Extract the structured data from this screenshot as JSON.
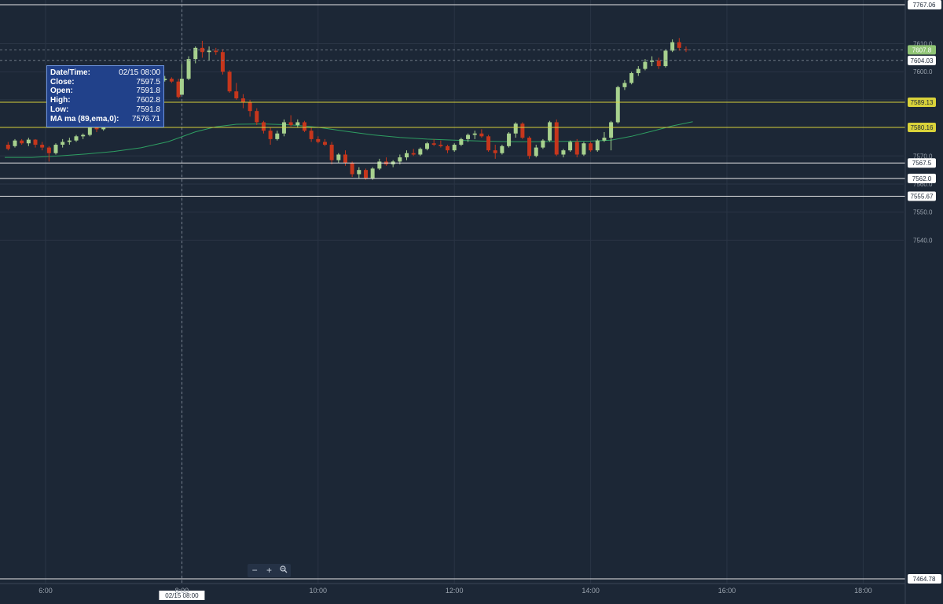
{
  "colors": {
    "background": "#1c2736",
    "grid": "#2a3545",
    "up": "#a7d18e",
    "down": "#c6361c",
    "ma": "#2e9e62",
    "yellow_line": "#d9d23a",
    "white_line": "#e6e6e6",
    "crosshair": "#8a93a0",
    "axis_text": "#9aa3ae"
  },
  "tooltip": {
    "rows": [
      {
        "label": "Date/Time:",
        "value": "02/15 08:00"
      },
      {
        "label": "Close:",
        "value": "7597.5"
      },
      {
        "label": "Open:",
        "value": "7591.8"
      },
      {
        "label": "High:",
        "value": "7602.8"
      },
      {
        "label": "Low:",
        "value": "7591.8"
      },
      {
        "label": "MA ma (89,ema,0):",
        "value": "7576.71"
      }
    ]
  },
  "zoom_controls": {
    "minus": "−",
    "plus": "+",
    "zoom_icon": "magnifier-icon"
  },
  "crosshair_label": "02/15 08:00",
  "chart_data": {
    "type": "candlestick",
    "y_axis_ticks": [
      7610.0,
      7600.0,
      7590.0,
      7570.0,
      7560.0,
      7550.0,
      7540.0
    ],
    "y_axis_tick_labels": [
      "7610.0",
      "7600.0",
      "7590.0",
      "7570.0",
      "7560.0",
      "7550.0",
      "7540.0"
    ],
    "x_axis_ticks": [
      "6:00",
      "8:00",
      "10:00",
      "12:00",
      "14:00",
      "16:00",
      "18:00"
    ],
    "x_axis_tick_hours": [
      6,
      8,
      10,
      12,
      14,
      16,
      18
    ],
    "axis_edge_labels": [
      {
        "value": 7767.06,
        "label": "7767.06"
      },
      {
        "value": 7464.78,
        "label": "7464.78"
      }
    ],
    "horizontal_lines": [
      {
        "value": 7589.13,
        "label": "7589.13",
        "style": "yellow"
      },
      {
        "value": 7580.16,
        "label": "7580.16",
        "style": "yellow"
      },
      {
        "value": 7567.5,
        "label": "7567.5",
        "style": "white"
      },
      {
        "value": 7562.0,
        "label": "7562.0",
        "style": "white"
      },
      {
        "value": 7555.67,
        "label": "7555.67",
        "style": "white"
      }
    ],
    "dashed_lines": [
      {
        "value": 7607.8,
        "label": "7607.8",
        "style": "last-price"
      },
      {
        "value": 7604.03,
        "label": "7604.03",
        "style": "level"
      }
    ],
    "crosshair_hour": 8.0,
    "candles": [
      [
        5.45,
        7574.0,
        7575.0,
        7572.0,
        7572.5
      ],
      [
        5.55,
        7573.5,
        7576.0,
        7573.0,
        7575.5
      ],
      [
        5.65,
        7575.5,
        7576.0,
        7574.0,
        7574.5
      ],
      [
        5.75,
        7574.5,
        7576.5,
        7573.5,
        7575.8
      ],
      [
        5.85,
        7575.8,
        7576.0,
        7573.0,
        7574.0
      ],
      [
        5.95,
        7574.0,
        7575.0,
        7572.0,
        7573.0
      ],
      [
        6.05,
        7573.0,
        7573.5,
        7568.0,
        7571.0
      ],
      [
        6.15,
        7571.0,
        7574.5,
        7570.5,
        7574.0
      ],
      [
        6.25,
        7574.0,
        7576.0,
        7573.0,
        7575.0
      ],
      [
        6.35,
        7575.0,
        7576.5,
        7574.0,
        7575.5
      ],
      [
        6.45,
        7575.5,
        7577.5,
        7575.0,
        7577.0
      ],
      [
        6.55,
        7577.0,
        7578.0,
        7576.0,
        7577.5
      ],
      [
        6.65,
        7577.5,
        7582.0,
        7577.0,
        7580.5
      ],
      [
        6.75,
        7580.5,
        7582.0,
        7578.5,
        7579.5
      ],
      [
        6.85,
        7579.5,
        7582.0,
        7579.0,
        7581.0
      ],
      [
        6.95,
        7581.0,
        7589.5,
        7580.0,
        7588.5
      ],
      [
        7.05,
        7588.5,
        7589.5,
        7583.5,
        7584.5
      ],
      [
        7.15,
        7584.5,
        7590.5,
        7584.0,
        7586.0
      ],
      [
        7.25,
        7586.0,
        7592.0,
        7585.5,
        7590.5
      ],
      [
        7.35,
        7590.5,
        7593.5,
        7590.0,
        7593.0
      ],
      [
        7.45,
        7593.0,
        7595.0,
        7592.0,
        7593.5
      ],
      [
        7.55,
        7593.5,
        7596.0,
        7593.0,
        7595.0
      ],
      [
        7.65,
        7595.0,
        7597.5,
        7594.5,
        7597.0
      ],
      [
        7.75,
        7597.0,
        7598.5,
        7596.5,
        7597.5
      ],
      [
        7.85,
        7597.5,
        7598.0,
        7596.0,
        7596.5
      ],
      [
        7.95,
        7596.5,
        7597.5,
        7590.5,
        7591.0
      ],
      [
        8.0,
        7591.8,
        7602.8,
        7591.8,
        7597.5
      ],
      [
        8.1,
        7597.5,
        7605.5,
        7597.0,
        7604.5
      ],
      [
        8.2,
        7604.5,
        7609.0,
        7603.0,
        7608.5
      ],
      [
        8.3,
        7608.5,
        7611.0,
        7605.0,
        7607.0
      ],
      [
        8.4,
        7607.0,
        7609.0,
        7604.0,
        7607.5
      ],
      [
        8.5,
        7607.5,
        7608.5,
        7606.0,
        7607.0
      ],
      [
        8.6,
        7607.0,
        7608.0,
        7599.0,
        7600.0
      ],
      [
        8.7,
        7600.0,
        7600.5,
        7592.5,
        7593.0
      ],
      [
        8.8,
        7593.0,
        7596.0,
        7590.0,
        7590.5
      ],
      [
        8.9,
        7590.5,
        7592.0,
        7587.0,
        7589.0
      ],
      [
        9.0,
        7589.0,
        7590.0,
        7584.0,
        7586.0
      ],
      [
        9.1,
        7586.0,
        7587.0,
        7581.0,
        7582.0
      ],
      [
        9.2,
        7582.0,
        7582.5,
        7578.0,
        7579.0
      ],
      [
        9.3,
        7579.0,
        7580.0,
        7574.0,
        7576.0
      ],
      [
        9.4,
        7576.0,
        7579.0,
        7575.5,
        7578.0
      ],
      [
        9.5,
        7578.0,
        7583.0,
        7577.0,
        7582.0
      ],
      [
        9.6,
        7582.0,
        7584.5,
        7580.5,
        7581.0
      ],
      [
        9.7,
        7581.0,
        7583.0,
        7580.0,
        7582.0
      ],
      [
        9.8,
        7582.0,
        7582.5,
        7578.5,
        7579.0
      ],
      [
        9.9,
        7579.0,
        7580.0,
        7575.0,
        7576.0
      ],
      [
        10.0,
        7576.0,
        7577.0,
        7574.5,
        7575.0
      ],
      [
        10.1,
        7575.0,
        7576.0,
        7573.5,
        7574.0
      ],
      [
        10.2,
        7574.0,
        7575.0,
        7567.0,
        7568.5
      ],
      [
        10.3,
        7568.5,
        7571.0,
        7567.5,
        7570.5
      ],
      [
        10.4,
        7570.5,
        7572.0,
        7566.5,
        7567.5
      ],
      [
        10.5,
        7567.5,
        7568.0,
        7562.5,
        7563.5
      ],
      [
        10.6,
        7563.5,
        7566.0,
        7562.0,
        7565.0
      ],
      [
        10.7,
        7565.0,
        7565.5,
        7561.5,
        7562.0
      ],
      [
        10.8,
        7562.0,
        7566.0,
        7561.5,
        7565.5
      ],
      [
        10.9,
        7565.5,
        7569.0,
        7565.0,
        7568.0
      ],
      [
        11.0,
        7568.0,
        7569.5,
        7566.5,
        7567.0
      ],
      [
        11.1,
        7567.0,
        7568.5,
        7566.0,
        7568.0
      ],
      [
        11.2,
        7568.0,
        7570.5,
        7567.0,
        7569.5
      ],
      [
        11.3,
        7569.5,
        7572.0,
        7568.5,
        7571.0
      ],
      [
        11.4,
        7571.0,
        7572.5,
        7570.0,
        7570.5
      ],
      [
        11.5,
        7570.5,
        7573.0,
        7570.0,
        7572.5
      ],
      [
        11.6,
        7572.5,
        7575.0,
        7572.0,
        7574.5
      ],
      [
        11.7,
        7574.5,
        7576.0,
        7573.5,
        7574.0
      ],
      [
        11.8,
        7574.0,
        7575.5,
        7573.0,
        7573.5
      ],
      [
        11.9,
        7573.5,
        7574.0,
        7571.0,
        7572.0
      ],
      [
        12.0,
        7572.0,
        7574.5,
        7571.5,
        7574.0
      ],
      [
        12.1,
        7574.0,
        7576.5,
        7573.5,
        7576.0
      ],
      [
        12.2,
        7576.0,
        7578.0,
        7575.0,
        7577.5
      ],
      [
        12.3,
        7577.5,
        7579.0,
        7576.0,
        7578.0
      ],
      [
        12.4,
        7578.0,
        7579.5,
        7576.5,
        7577.0
      ],
      [
        12.5,
        7577.0,
        7577.5,
        7571.5,
        7572.0
      ],
      [
        12.6,
        7572.0,
        7574.0,
        7569.0,
        7571.0
      ],
      [
        12.7,
        7571.0,
        7574.0,
        7570.5,
        7573.5
      ],
      [
        12.8,
        7573.5,
        7578.5,
        7573.0,
        7578.0
      ],
      [
        12.9,
        7578.0,
        7582.0,
        7576.5,
        7581.5
      ],
      [
        13.0,
        7581.5,
        7582.0,
        7576.0,
        7576.5
      ],
      [
        13.1,
        7576.5,
        7577.0,
        7569.0,
        7570.0
      ],
      [
        13.2,
        7570.0,
        7574.0,
        7569.5,
        7573.0
      ],
      [
        13.3,
        7573.0,
        7576.0,
        7572.5,
        7575.5
      ],
      [
        13.4,
        7575.5,
        7582.5,
        7575.0,
        7582.0
      ],
      [
        13.5,
        7582.0,
        7583.0,
        7570.0,
        7570.5
      ],
      [
        13.6,
        7570.5,
        7572.5,
        7569.5,
        7572.0
      ],
      [
        13.7,
        7572.0,
        7575.5,
        7571.5,
        7575.0
      ],
      [
        13.8,
        7575.0,
        7576.0,
        7569.5,
        7570.5
      ],
      [
        13.9,
        7570.5,
        7575.0,
        7570.0,
        7574.5
      ],
      [
        14.0,
        7574.5,
        7575.0,
        7571.5,
        7572.0
      ],
      [
        14.1,
        7572.0,
        7576.0,
        7571.5,
        7575.5
      ],
      [
        14.2,
        7575.5,
        7578.5,
        7575.0,
        7576.5
      ],
      [
        14.3,
        7576.5,
        7582.5,
        7572.0,
        7582.0
      ],
      [
        14.4,
        7582.0,
        7595.0,
        7581.5,
        7594.5
      ],
      [
        14.5,
        7594.5,
        7597.0,
        7593.5,
        7596.0
      ],
      [
        14.6,
        7596.0,
        7600.0,
        7595.5,
        7599.5
      ],
      [
        14.7,
        7599.5,
        7602.0,
        7598.5,
        7601.0
      ],
      [
        14.8,
        7601.0,
        7604.5,
        7600.5,
        7603.5
      ],
      [
        14.9,
        7603.5,
        7605.5,
        7602.0,
        7604.0
      ],
      [
        15.0,
        7604.0,
        7605.0,
        7601.0,
        7602.0
      ],
      [
        15.1,
        7602.0,
        7608.0,
        7601.5,
        7607.5
      ],
      [
        15.2,
        7607.5,
        7611.5,
        7607.0,
        7610.5
      ],
      [
        15.3,
        7610.5,
        7612.0,
        7607.5,
        7608.5
      ],
      [
        15.4,
        7608.0,
        7609.0,
        7607.0,
        7607.8
      ]
    ],
    "ma": {
      "name": "MA ma (89,ema,0)",
      "points": [
        [
          5.4,
          7569.5
        ],
        [
          5.8,
          7569.5
        ],
        [
          6.2,
          7570.0
        ],
        [
          6.6,
          7570.7
        ],
        [
          7.0,
          7571.6
        ],
        [
          7.4,
          7572.9
        ],
        [
          7.8,
          7575.1
        ],
        [
          8.2,
          7578.6
        ],
        [
          8.5,
          7580.4
        ],
        [
          8.8,
          7581.3
        ],
        [
          9.2,
          7581.4
        ],
        [
          9.6,
          7581.1
        ],
        [
          10.0,
          7580.2
        ],
        [
          10.4,
          7578.8
        ],
        [
          10.8,
          7577.5
        ],
        [
          11.2,
          7576.6
        ],
        [
          11.6,
          7576.0
        ],
        [
          12.0,
          7575.6
        ],
        [
          12.4,
          7575.3
        ],
        [
          12.8,
          7575.1
        ],
        [
          13.2,
          7575.1
        ],
        [
          13.6,
          7575.2
        ],
        [
          14.0,
          7575.3
        ],
        [
          14.3,
          7575.6
        ],
        [
          14.6,
          7577.0
        ],
        [
          14.9,
          7578.8
        ],
        [
          15.2,
          7580.7
        ],
        [
          15.5,
          7582.2
        ]
      ]
    }
  }
}
